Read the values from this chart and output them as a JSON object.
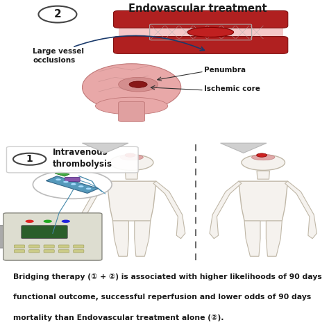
{
  "bg_color_top": "#eef0f5",
  "bg_color_bottom": "#d8eef8",
  "bg_color_page": "#ffffff",
  "title_top": "Endovascular treatment",
  "label_circle2": "2",
  "label_circle1": "1",
  "label_iv": "Intravenous\nthrombolysis",
  "label_lvo": "Large vessel\nocclusions",
  "label_penumbra": "Penumbra",
  "label_ischemic": "Ischemic core",
  "caption_line1": "Bridging therapy (① + ②) is associated with higher likelihoods of 90 days",
  "caption_line2": "functional outcome, successful reperfusion and lower odds of 90 days",
  "caption_line3": "mortality than Endovascular treatment alone (②).",
  "arrow_color": "#1a3a6b",
  "vessel_color_dark": "#b02020",
  "vessel_color_mid": "#c83030",
  "lumen_color": "#f5c8c8",
  "clot_color": "#c02020",
  "brain_color": "#e8a8a8",
  "body_color": "#f5f2ee",
  "body_outline": "#c0b8a8",
  "dashed_line_color": "#666666",
  "circle_bg": "#ffffff",
  "circle_border": "#333333",
  "font_color": "#1a1a1a",
  "caption_font_size": 7.8,
  "title_font_size": 10.5,
  "label_font_size": 7.5
}
